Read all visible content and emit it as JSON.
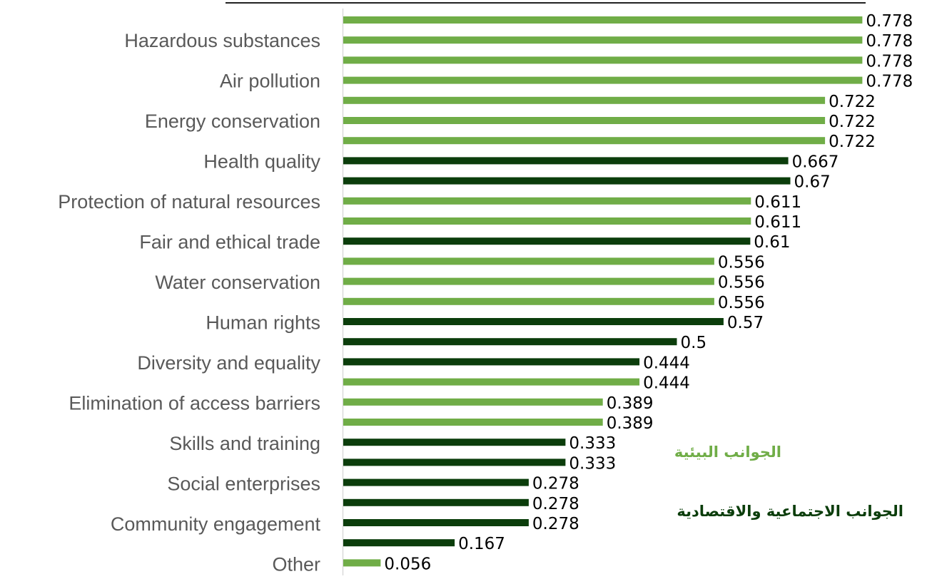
{
  "chart_data": {
    "type": "bar",
    "orientation": "horizontal",
    "grid": false,
    "legend_position": "right",
    "xlim": [
      0,
      1
    ],
    "colors": {
      "environmental": "#70ad47",
      "socioeconomic": "#0b3d0b",
      "axis": "#d9d9d9",
      "category_text": "#595959",
      "value_text": "#000000"
    },
    "categories": [
      "Hazardous substances",
      "Air pollution",
      "Energy conservation",
      "Health quality",
      "Protection of natural resources",
      "Fair and ethical trade",
      "Water conservation",
      "Human rights",
      "Diversity and equality",
      "Elimination of access barriers",
      "Skills and training",
      "Social enterprises",
      "Community engagement",
      "Other"
    ],
    "bars": [
      {
        "value": 0.778,
        "label": "0.778",
        "group": "environmental"
      },
      {
        "value": 0.778,
        "label": "0.778",
        "group": "environmental"
      },
      {
        "value": 0.778,
        "label": "0.778",
        "group": "environmental"
      },
      {
        "value": 0.778,
        "label": "0.778",
        "group": "environmental"
      },
      {
        "value": 0.722,
        "label": "0.722",
        "group": "environmental"
      },
      {
        "value": 0.722,
        "label": "0.722",
        "group": "environmental"
      },
      {
        "value": 0.722,
        "label": "0.722",
        "group": "environmental"
      },
      {
        "value": 0.667,
        "label": "0.667",
        "group": "socioeconomic"
      },
      {
        "value": 0.67,
        "label": "0.67",
        "group": "socioeconomic"
      },
      {
        "value": 0.611,
        "label": "0.611",
        "group": "environmental"
      },
      {
        "value": 0.611,
        "label": "0.611",
        "group": "environmental"
      },
      {
        "value": 0.61,
        "label": "0.61",
        "group": "socioeconomic"
      },
      {
        "value": 0.556,
        "label": "0.556",
        "group": "environmental"
      },
      {
        "value": 0.556,
        "label": "0.556",
        "group": "environmental"
      },
      {
        "value": 0.556,
        "label": "0.556",
        "group": "environmental"
      },
      {
        "value": 0.57,
        "label": "0.57",
        "group": "socioeconomic"
      },
      {
        "value": 0.5,
        "label": "0.5",
        "group": "socioeconomic"
      },
      {
        "value": 0.444,
        "label": "0.444",
        "group": "socioeconomic"
      },
      {
        "value": 0.444,
        "label": "0.444",
        "group": "environmental"
      },
      {
        "value": 0.389,
        "label": "0.389",
        "group": "environmental"
      },
      {
        "value": 0.389,
        "label": "0.389",
        "group": "environmental"
      },
      {
        "value": 0.333,
        "label": "0.333",
        "group": "socioeconomic"
      },
      {
        "value": 0.333,
        "label": "0.333",
        "group": "socioeconomic"
      },
      {
        "value": 0.278,
        "label": "0.278",
        "group": "socioeconomic"
      },
      {
        "value": 0.278,
        "label": "0.278",
        "group": "socioeconomic"
      },
      {
        "value": 0.278,
        "label": "0.278",
        "group": "socioeconomic"
      },
      {
        "value": 0.167,
        "label": "0.167",
        "group": "socioeconomic"
      },
      {
        "value": 0.056,
        "label": "0.056",
        "group": "environmental"
      }
    ],
    "legend": [
      {
        "group": "environmental",
        "text": "الجوانب البيئية"
      },
      {
        "group": "socioeconomic",
        "text": "الجوانب الاجتماعية والاقتصادية"
      }
    ]
  }
}
